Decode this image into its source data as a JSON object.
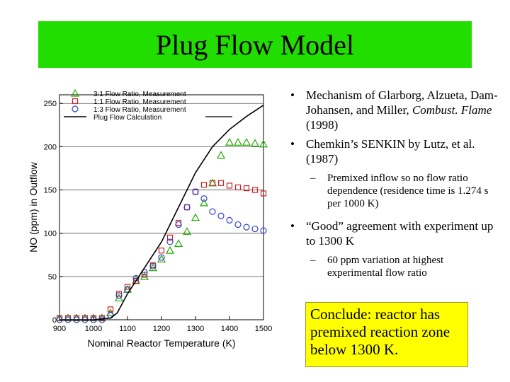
{
  "title": "Plug Flow Model",
  "bullets": [
    {
      "text_before": "Mechanism of Glarborg, Alzueta, Dam-Johansen, and Miller, ",
      "italic": "Combust. Flame",
      "text_after": " (1998)"
    },
    {
      "text": "Chemkin’s SENKIN by Lutz, et al. (1987)"
    },
    {
      "sub": "Premixed inflow so no flow ratio dependence (residence time is 1.274 s per 1000 K)"
    },
    {
      "text": "“Good” agreement with experiment up to 1300 K"
    },
    {
      "sub": "60 ppm variation at highest experimental flow ratio"
    }
  ],
  "conclusion": "Conclude: reactor has premixed reaction zone below 1300 K.",
  "colors": {
    "title_bg": "#22dd00",
    "conclusion_bg": "#ffff00",
    "green": "#22aa00",
    "red": "#cc2222",
    "blue": "#3344cc",
    "calc": "#000000"
  },
  "chart_data": {
    "type": "scatter",
    "xlabel": "Nominal Reactor Temperature (K)",
    "ylabel": "NO (ppm) in Outflow",
    "xlim": [
      900,
      1500
    ],
    "ylim": [
      0,
      260
    ],
    "xticks": [
      900,
      1000,
      1100,
      1200,
      1300,
      1400,
      1500
    ],
    "yticks": [
      0,
      50,
      100,
      150,
      200,
      250
    ],
    "grid_y": [
      50,
      100,
      150,
      200,
      250
    ],
    "legend": "top-left",
    "series": [
      {
        "name": "3:1 Flow Ratio, Measurement",
        "marker": "triangle",
        "color": "green",
        "x": [
          900,
          925,
          950,
          975,
          1000,
          1025,
          1050,
          1075,
          1100,
          1125,
          1150,
          1175,
          1200,
          1225,
          1250,
          1275,
          1300,
          1325,
          1350,
          1375,
          1400,
          1425,
          1450,
          1475,
          1500
        ],
        "y": [
          2,
          2,
          2,
          2,
          2,
          2,
          8,
          25,
          35,
          45,
          50,
          60,
          70,
          80,
          88,
          102,
          118,
          135,
          158,
          190,
          205,
          205,
          205,
          204,
          203
        ]
      },
      {
        "name": "1:1 Flow Ratio, Measurement",
        "marker": "square",
        "color": "red",
        "x": [
          900,
          925,
          950,
          975,
          1000,
          1025,
          1050,
          1075,
          1100,
          1125,
          1150,
          1175,
          1200,
          1225,
          1250,
          1275,
          1300,
          1325,
          1350,
          1375,
          1400,
          1425,
          1450,
          1475,
          1500
        ],
        "y": [
          2,
          2,
          2,
          2,
          2,
          2,
          12,
          30,
          38,
          45,
          52,
          63,
          80,
          95,
          112,
          130,
          148,
          156,
          158,
          158,
          155,
          153,
          152,
          150,
          146
        ]
      },
      {
        "name": "1:3 Flow Ratio, Measurement",
        "marker": "circle",
        "color": "blue",
        "x": [
          900,
          925,
          950,
          975,
          1000,
          1025,
          1050,
          1075,
          1100,
          1125,
          1150,
          1175,
          1200,
          1225,
          1250,
          1275,
          1300,
          1325,
          1350,
          1375,
          1400,
          1425,
          1450,
          1475,
          1500
        ],
        "y": [
          0,
          0,
          0,
          0,
          0,
          0,
          5,
          28,
          35,
          48,
          55,
          62,
          72,
          90,
          110,
          130,
          148,
          140,
          125,
          120,
          115,
          110,
          107,
          105,
          103
        ]
      },
      {
        "name": "Plug Flow Calculation",
        "marker": "line",
        "color": "calc",
        "x": [
          900,
          1000,
          1050,
          1070,
          1100,
          1150,
          1200,
          1250,
          1300,
          1350,
          1400,
          1450,
          1500
        ],
        "y": [
          0,
          0,
          2,
          8,
          30,
          60,
          90,
          130,
          170,
          200,
          220,
          235,
          248
        ]
      }
    ]
  }
}
